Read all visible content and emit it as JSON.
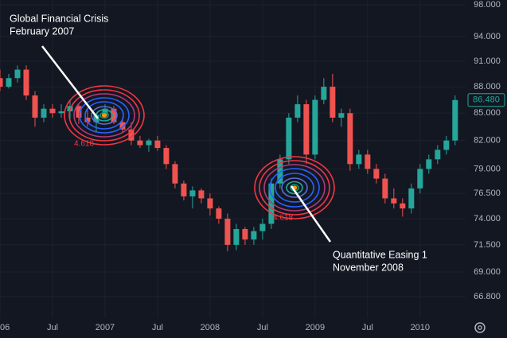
{
  "chart_data": {
    "type": "candlestick",
    "log_scale": true,
    "grid": true,
    "up_color": "#26a69a",
    "down_color": "#ef5350",
    "x": [
      0,
      1,
      2,
      3,
      4,
      5,
      6,
      7,
      8,
      9,
      10,
      11,
      12,
      13,
      14,
      15,
      16,
      17,
      18,
      19,
      20,
      21,
      22,
      23,
      24,
      25,
      26,
      27,
      28,
      29,
      30,
      31,
      32,
      33,
      34,
      35,
      36,
      37,
      38,
      39,
      40,
      41,
      42,
      43,
      44,
      45,
      46,
      47,
      48,
      49,
      50,
      51,
      52
    ],
    "open": [
      89.0,
      88.0,
      89.0,
      90.0,
      87.0,
      84.5,
      85.5,
      85.0,
      85.2,
      85.8,
      84.5,
      84.0,
      84.8,
      85.5,
      84.0,
      83.2,
      82.0,
      81.5,
      82.0,
      81.2,
      79.5,
      77.5,
      76.2,
      76.8,
      76.0,
      75.0,
      74.0,
      71.5,
      73.0,
      72.0,
      72.8,
      73.5,
      77.5,
      80.0,
      84.5,
      86.0,
      80.5,
      86.5,
      88.0,
      84.5,
      85.0,
      79.5,
      80.5,
      79.0,
      78.0,
      76.0,
      75.5,
      75.0,
      77.0,
      79.0,
      80.0,
      81.0,
      82.0
    ],
    "high": [
      90.0,
      89.5,
      90.5,
      90.5,
      87.5,
      86.0,
      86.0,
      86.0,
      86.5,
      86.0,
      85.5,
      85.0,
      86.0,
      85.8,
      84.5,
      84.0,
      82.5,
      82.2,
      82.5,
      81.5,
      79.8,
      77.8,
      77.2,
      77.0,
      76.5,
      75.2,
      74.5,
      73.5,
      73.2,
      73.2,
      74.0,
      78.0,
      80.5,
      85.0,
      87.0,
      86.5,
      87.0,
      89.0,
      89.5,
      85.5,
      85.5,
      81.0,
      81.0,
      79.5,
      78.5,
      77.0,
      76.0,
      77.5,
      79.5,
      80.5,
      81.5,
      82.5,
      87.0
    ],
    "low": [
      87.5,
      87.8,
      88.5,
      86.5,
      83.5,
      84.0,
      84.5,
      84.5,
      84.2,
      83.8,
      83.5,
      83.0,
      84.5,
      83.8,
      82.8,
      81.5,
      81.2,
      80.8,
      80.9,
      79.0,
      77.0,
      75.8,
      75.0,
      75.5,
      74.3,
      73.5,
      70.9,
      71.0,
      71.5,
      71.5,
      72.0,
      73.0,
      77.0,
      79.5,
      84.0,
      79.5,
      80.0,
      86.0,
      84.0,
      83.5,
      78.8,
      79.0,
      78.5,
      77.5,
      75.5,
      75.0,
      74.2,
      74.5,
      76.5,
      78.5,
      79.5,
      80.5,
      81.5
    ],
    "close": [
      88.0,
      89.0,
      90.0,
      87.0,
      84.5,
      85.5,
      85.0,
      85.2,
      85.8,
      84.5,
      84.0,
      84.8,
      85.5,
      84.0,
      83.2,
      82.0,
      81.5,
      82.0,
      81.2,
      79.5,
      77.5,
      76.2,
      76.8,
      76.0,
      75.0,
      74.0,
      71.5,
      73.0,
      72.0,
      72.8,
      73.5,
      77.5,
      80.0,
      84.5,
      86.0,
      80.5,
      86.5,
      88.0,
      84.5,
      85.0,
      79.5,
      80.5,
      79.0,
      78.0,
      76.0,
      75.5,
      75.0,
      77.0,
      79.0,
      80.0,
      81.0,
      82.0,
      86.48
    ],
    "xlim": [
      0,
      53.2
    ],
    "xticks": [
      {
        "value": 0,
        "label": "06"
      },
      {
        "value": 6,
        "label": "Jul"
      },
      {
        "value": 12,
        "label": "2007"
      },
      {
        "value": 18,
        "label": "Jul"
      },
      {
        "value": 24,
        "label": "2008"
      },
      {
        "value": 30,
        "label": "Jul"
      },
      {
        "value": 36,
        "label": "2009"
      },
      {
        "value": 42,
        "label": "Jul"
      },
      {
        "value": 48,
        "label": "2010"
      }
    ],
    "ylim": [
      64.94,
      98.62
    ],
    "yticks": [
      {
        "value": 98,
        "label": "98.000"
      },
      {
        "value": 94,
        "label": "94.000"
      },
      {
        "value": 91,
        "label": "91.000"
      },
      {
        "value": 88,
        "label": "88.000"
      },
      {
        "value": 85,
        "label": "85.000"
      },
      {
        "value": 82,
        "label": "82.000"
      },
      {
        "value": 79,
        "label": "79.000"
      },
      {
        "value": 76.5,
        "label": "76.500"
      },
      {
        "value": 74,
        "label": "74.000"
      },
      {
        "value": 71.5,
        "label": "71.500"
      },
      {
        "value": 69,
        "label": "69.000"
      },
      {
        "value": 66.8,
        "label": "66.800"
      }
    ],
    "last_price": {
      "value": 86.48,
      "label": "86.480"
    },
    "annotations": [
      {
        "lines": [
          "Global Financial Crisis",
          "February 2007"
        ],
        "fib_label": "4.618"
      },
      {
        "lines": [
          "Quantitative Easing 1",
          "November 2008"
        ],
        "fib_label": "4.618"
      }
    ]
  }
}
